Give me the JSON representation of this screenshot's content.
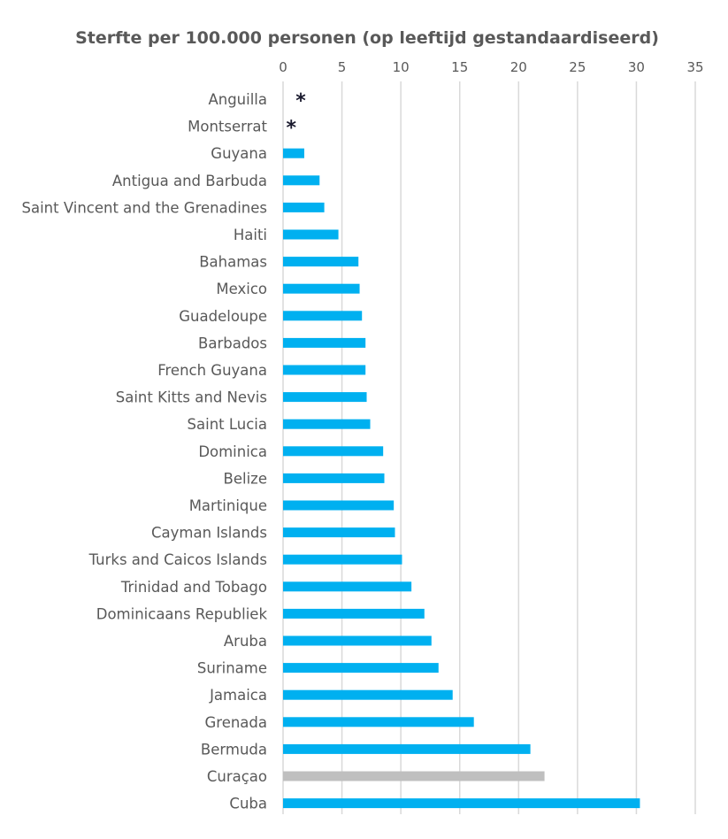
{
  "chart_data": {
    "type": "bar",
    "orientation": "horizontal",
    "title": "Sterfte per 100.000 personen (op leeftijd gestandaardiseerd)",
    "xlabel": "",
    "ylabel": "",
    "xlim": [
      0,
      35
    ],
    "xticks": [
      "0",
      "5",
      "10",
      "15",
      "20",
      "25",
      "30",
      "35"
    ],
    "axis_position": "top",
    "grid": true,
    "categories": [
      "Anguilla",
      "Montserrat",
      "Guyana",
      "Antigua and Barbuda",
      "Saint Vincent and the Grenadines",
      "Haiti",
      "Bahamas",
      "Mexico",
      "Guadeloupe",
      "Barbados",
      "French Guyana",
      "Saint Kitts and Nevis",
      "Saint Lucia",
      "Dominica",
      "Belize",
      "Martinique",
      "Cayman Islands",
      "Turks and Caicos Islands",
      "Trinidad and Tobago",
      "Dominicaans Republiek",
      "Aruba",
      "Suriname",
      "Jamaica",
      "Grenada",
      "Bermuda",
      "Curaçao",
      "Cuba"
    ],
    "values": [
      null,
      null,
      1.8,
      3.1,
      3.5,
      4.7,
      6.4,
      6.5,
      6.7,
      7.0,
      7.0,
      7.1,
      7.4,
      8.5,
      8.6,
      9.4,
      9.5,
      10.1,
      10.9,
      12.0,
      12.6,
      13.2,
      14.4,
      16.2,
      21.0,
      22.2,
      30.3
    ],
    "markers": [
      {
        "category": "Anguilla",
        "symbol": "*",
        "value": 1.5
      },
      {
        "category": "Montserrat",
        "symbol": "*",
        "value": 0.7
      }
    ],
    "highlight": {
      "category": "Curaçao",
      "color": "#bfbfbf"
    },
    "bar_color": "#00b0f0",
    "marker_color": "#1a1a2e"
  }
}
